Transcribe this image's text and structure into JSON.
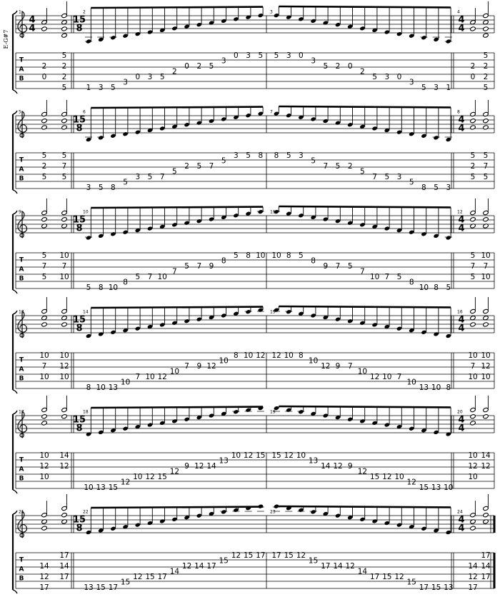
{
  "instrument_label": "E-G#7",
  "tab_label": [
    "T",
    "A",
    "B"
  ],
  "systems": [
    {
      "measures": [
        {
          "number": 1,
          "time": [
            "4",
            "4"
          ],
          "chords": [
            [
              [
                3,
                2
              ],
              [
                5,
                0
              ]
            ],
            [
              [
                1,
                5
              ],
              [
                3,
                2
              ],
              [
                5,
                2
              ],
              [
                7,
                5
              ]
            ]
          ]
        },
        {
          "number": 2,
          "time": [
            "15",
            "8"
          ],
          "notes": [
            [
              7,
              1
            ],
            [
              7,
              3
            ],
            [
              7,
              5
            ],
            [
              6,
              3
            ],
            [
              5,
              0
            ],
            [
              5,
              3
            ],
            [
              5,
              5
            ],
            [
              4,
              2
            ],
            [
              3,
              0
            ],
            [
              3,
              2
            ],
            [
              3,
              5
            ],
            [
              2,
              3
            ],
            [
              1,
              0
            ],
            [
              1,
              3
            ],
            [
              1,
              5
            ]
          ]
        },
        {
          "number": 3,
          "notes": [
            [
              1,
              5
            ],
            [
              1,
              3
            ],
            [
              1,
              0
            ],
            [
              2,
              3
            ],
            [
              3,
              5
            ],
            [
              3,
              2
            ],
            [
              3,
              0
            ],
            [
              4,
              2
            ],
            [
              5,
              5
            ],
            [
              5,
              3
            ],
            [
              5,
              0
            ],
            [
              6,
              3
            ],
            [
              7,
              5
            ],
            [
              7,
              3
            ],
            [
              7,
              1
            ]
          ]
        },
        {
          "number": 4,
          "time": [
            "4",
            "4"
          ],
          "chords": [
            [
              [
                3,
                2
              ],
              [
                5,
                0
              ]
            ],
            [
              [
                1,
                5
              ],
              [
                3,
                2
              ],
              [
                5,
                2
              ],
              [
                7,
                5
              ]
            ]
          ]
        }
      ]
    },
    {
      "measures": [
        {
          "number": 5,
          "chords": [
            [
              [
                1,
                5
              ],
              [
                3,
                2
              ],
              [
                5,
                5
              ]
            ],
            [
              [
                1,
                5
              ],
              [
                3,
                7
              ],
              [
                5,
                5
              ]
            ]
          ]
        },
        {
          "number": 6,
          "time": [
            "15",
            "8"
          ],
          "notes": [
            [
              7,
              3
            ],
            [
              7,
              5
            ],
            [
              7,
              8
            ],
            [
              6,
              5
            ],
            [
              5,
              3
            ],
            [
              5,
              5
            ],
            [
              5,
              7
            ],
            [
              4,
              5
            ],
            [
              3,
              2
            ],
            [
              3,
              5
            ],
            [
              3,
              7
            ],
            [
              2,
              5
            ],
            [
              1,
              3
            ],
            [
              1,
              5
            ],
            [
              1,
              8
            ]
          ]
        },
        {
          "number": 7,
          "notes": [
            [
              1,
              8
            ],
            [
              1,
              5
            ],
            [
              1,
              3
            ],
            [
              2,
              5
            ],
            [
              3,
              7
            ],
            [
              3,
              5
            ],
            [
              3,
              2
            ],
            [
              4,
              5
            ],
            [
              5,
              7
            ],
            [
              5,
              5
            ],
            [
              5,
              3
            ],
            [
              6,
              5
            ],
            [
              7,
              8
            ],
            [
              7,
              5
            ],
            [
              7,
              3
            ]
          ]
        },
        {
          "number": 8,
          "time": [
            "4",
            "4"
          ],
          "chords": [
            [
              [
                1,
                5
              ],
              [
                3,
                2
              ],
              [
                5,
                5
              ]
            ],
            [
              [
                1,
                5
              ],
              [
                3,
                7
              ],
              [
                5,
                5
              ]
            ]
          ]
        }
      ]
    },
    {
      "measures": [
        {
          "number": 9,
          "chords": [
            [
              [
                1,
                5
              ],
              [
                3,
                7
              ],
              [
                5,
                5
              ]
            ],
            [
              [
                1,
                10
              ],
              [
                3,
                7
              ],
              [
                5,
                10
              ]
            ]
          ]
        },
        {
          "number": 10,
          "time": [
            "15",
            "8"
          ],
          "notes": [
            [
              7,
              5
            ],
            [
              7,
              8
            ],
            [
              7,
              10
            ],
            [
              6,
              8
            ],
            [
              5,
              5
            ],
            [
              5,
              7
            ],
            [
              5,
              10
            ],
            [
              4,
              7
            ],
            [
              3,
              5
            ],
            [
              3,
              7
            ],
            [
              3,
              9
            ],
            [
              2,
              8
            ],
            [
              1,
              5
            ],
            [
              1,
              8
            ],
            [
              1,
              10
            ]
          ]
        },
        {
          "number": 11,
          "notes": [
            [
              1,
              10
            ],
            [
              1,
              8
            ],
            [
              1,
              5
            ],
            [
              2,
              8
            ],
            [
              3,
              9
            ],
            [
              3,
              7
            ],
            [
              3,
              5
            ],
            [
              4,
              7
            ],
            [
              5,
              10
            ],
            [
              5,
              7
            ],
            [
              5,
              5
            ],
            [
              6,
              8
            ],
            [
              7,
              10
            ],
            [
              7,
              8
            ],
            [
              7,
              5
            ]
          ]
        },
        {
          "number": 12,
          "time": [
            "4",
            "4"
          ],
          "chords": [
            [
              [
                1,
                5
              ],
              [
                3,
                7
              ],
              [
                5,
                5
              ]
            ],
            [
              [
                1,
                10
              ],
              [
                3,
                7
              ],
              [
                5,
                10
              ]
            ]
          ]
        }
      ]
    },
    {
      "measures": [
        {
          "number": 13,
          "chords": [
            [
              [
                1,
                10
              ],
              [
                3,
                7
              ],
              [
                5,
                10
              ]
            ],
            [
              [
                1,
                10
              ],
              [
                3,
                12
              ],
              [
                5,
                10
              ]
            ]
          ]
        },
        {
          "number": 14,
          "time": [
            "15",
            "8"
          ],
          "notes": [
            [
              7,
              8
            ],
            [
              7,
              10
            ],
            [
              7,
              13
            ],
            [
              6,
              10
            ],
            [
              5,
              7
            ],
            [
              5,
              10
            ],
            [
              5,
              12
            ],
            [
              4,
              10
            ],
            [
              3,
              7
            ],
            [
              3,
              9
            ],
            [
              3,
              12
            ],
            [
              2,
              10
            ],
            [
              1,
              8
            ],
            [
              1,
              10
            ],
            [
              1,
              12
            ]
          ]
        },
        {
          "number": 15,
          "notes": [
            [
              1,
              12
            ],
            [
              1,
              10
            ],
            [
              1,
              8
            ],
            [
              2,
              10
            ],
            [
              3,
              12
            ],
            [
              3,
              9
            ],
            [
              3,
              7
            ],
            [
              4,
              10
            ],
            [
              5,
              12
            ],
            [
              5,
              10
            ],
            [
              5,
              7
            ],
            [
              6,
              10
            ],
            [
              7,
              13
            ],
            [
              7,
              10
            ],
            [
              7,
              8
            ]
          ]
        },
        {
          "number": 16,
          "time": [
            "4",
            "4"
          ],
          "chords": [
            [
              [
                1,
                10
              ],
              [
                3,
                7
              ],
              [
                5,
                10
              ]
            ],
            [
              [
                1,
                10
              ],
              [
                3,
                12
              ],
              [
                5,
                10
              ]
            ]
          ]
        }
      ]
    },
    {
      "measures": [
        {
          "number": 17,
          "chords": [
            [
              [
                1,
                10
              ],
              [
                3,
                12
              ],
              [
                5,
                10
              ]
            ],
            [
              [
                1,
                14
              ],
              [
                3,
                12
              ]
            ]
          ]
        },
        {
          "number": 18,
          "time": [
            "15",
            "8"
          ],
          "notes": [
            [
              7,
              10
            ],
            [
              7,
              13
            ],
            [
              7,
              15
            ],
            [
              6,
              12
            ],
            [
              5,
              10
            ],
            [
              5,
              12
            ],
            [
              5,
              15
            ],
            [
              4,
              12
            ],
            [
              3,
              9
            ],
            [
              3,
              12
            ],
            [
              3,
              14
            ],
            [
              2,
              13
            ],
            [
              1,
              10
            ],
            [
              1,
              12
            ],
            [
              1,
              15
            ]
          ]
        },
        {
          "number": 19,
          "notes": [
            [
              1,
              15
            ],
            [
              1,
              12
            ],
            [
              1,
              10
            ],
            [
              2,
              13
            ],
            [
              3,
              14
            ],
            [
              3,
              12
            ],
            [
              3,
              9
            ],
            [
              4,
              12
            ],
            [
              5,
              15
            ],
            [
              5,
              12
            ],
            [
              5,
              10
            ],
            [
              6,
              12
            ],
            [
              7,
              15
            ],
            [
              7,
              13
            ],
            [
              7,
              10
            ]
          ]
        },
        {
          "number": 20,
          "time": [
            "4",
            "4"
          ],
          "chords": [
            [
              [
                1,
                10
              ],
              [
                3,
                12
              ],
              [
                5,
                10
              ]
            ],
            [
              [
                1,
                14
              ],
              [
                3,
                12
              ]
            ]
          ]
        }
      ]
    },
    {
      "measures": [
        {
          "number": 21,
          "chords": [
            [
              [
                3,
                14
              ],
              [
                5,
                12
              ],
              [
                7,
                17
              ]
            ],
            [
              [
                1,
                17
              ],
              [
                3,
                14
              ],
              [
                5,
                17
              ]
            ]
          ]
        },
        {
          "number": 22,
          "time": [
            "15",
            "8"
          ],
          "notes": [
            [
              7,
              13
            ],
            [
              7,
              15
            ],
            [
              7,
              17
            ],
            [
              6,
              15
            ],
            [
              5,
              12
            ],
            [
              5,
              15
            ],
            [
              5,
              17
            ],
            [
              4,
              14
            ],
            [
              3,
              12
            ],
            [
              3,
              14
            ],
            [
              3,
              17
            ],
            [
              2,
              15
            ],
            [
              1,
              12
            ],
            [
              1,
              15
            ],
            [
              1,
              17
            ]
          ]
        },
        {
          "number": 23,
          "notes": [
            [
              1,
              17
            ],
            [
              1,
              15
            ],
            [
              1,
              12
            ],
            [
              2,
              15
            ],
            [
              3,
              17
            ],
            [
              3,
              14
            ],
            [
              3,
              12
            ],
            [
              4,
              14
            ],
            [
              5,
              17
            ],
            [
              5,
              15
            ],
            [
              5,
              12
            ],
            [
              6,
              15
            ],
            [
              7,
              17
            ],
            [
              7,
              15
            ],
            [
              7,
              13
            ]
          ]
        },
        {
          "number": 24,
          "time": [
            "4",
            "4"
          ],
          "chords": [
            [
              [
                3,
                14
              ],
              [
                5,
                12
              ],
              [
                7,
                17
              ]
            ],
            [
              [
                1,
                17
              ],
              [
                3,
                14
              ],
              [
                5,
                17
              ]
            ]
          ]
        }
      ]
    }
  ]
}
